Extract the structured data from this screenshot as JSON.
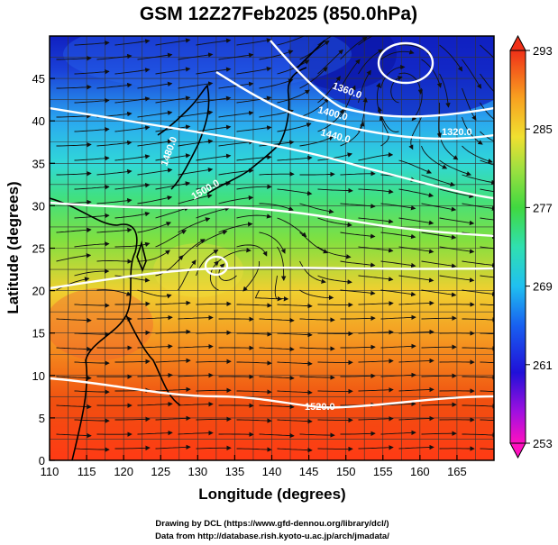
{
  "title": "GSM 12Z27Feb2025 (850.0hPa)",
  "x_axis": {
    "label": "Longitude (degrees)",
    "range": [
      110,
      170
    ],
    "ticks": [
      "110",
      "115",
      "120",
      "125",
      "130",
      "135",
      "140",
      "145",
      "150",
      "155",
      "160",
      "165"
    ]
  },
  "y_axis": {
    "label": "Latitude  (degrees)",
    "range": [
      0,
      50
    ],
    "ticks": [
      "0",
      "5",
      "10",
      "15",
      "20",
      "25",
      "30",
      "35",
      "40",
      "45"
    ]
  },
  "colorbar": {
    "range": [
      253,
      293
    ],
    "ticks": [
      "253",
      "261",
      "269",
      "277",
      "285",
      "293"
    ]
  },
  "contour_labels": [
    "1360.0",
    "1400.0",
    "1440.0",
    "1520.0",
    "1320.0",
    "1480.0",
    "1500.0"
  ],
  "credits": {
    "line1": "Drawing by DCL (https://www.gfd-dennou.org/library/dcl/)",
    "line2": "Data from http://database.rish.kyoto-u.ac.jp/arch/jmadata/"
  },
  "colors": {
    "cold": "#0a1ad0",
    "cool": "#27d9e8",
    "mild": "#7fe038",
    "warm": "#f5a020",
    "hot": "#e8401a"
  }
}
